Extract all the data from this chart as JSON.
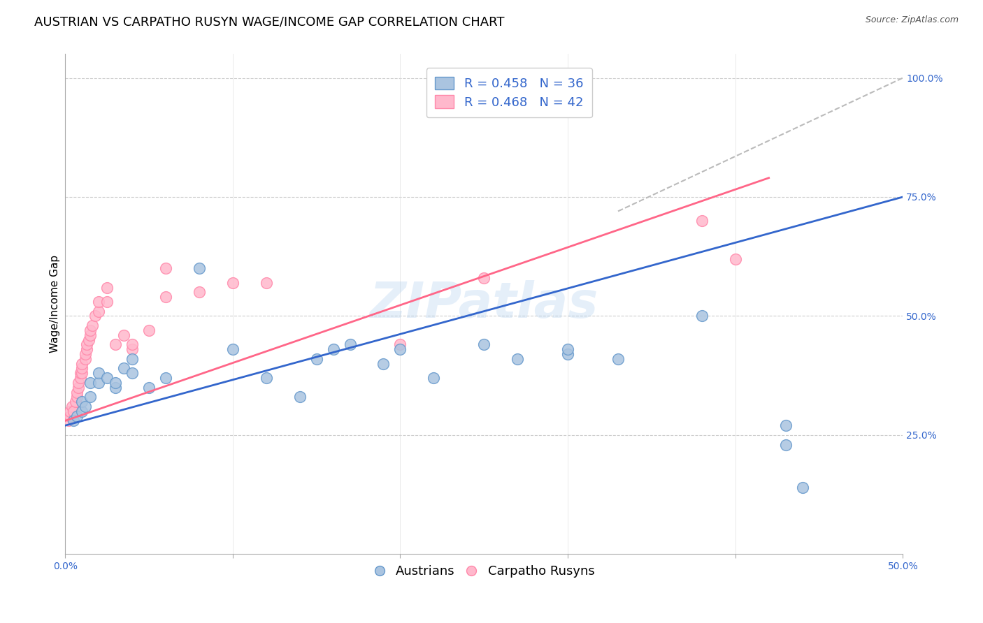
{
  "title": "AUSTRIAN VS CARPATHO RUSYN WAGE/INCOME GAP CORRELATION CHART",
  "source": "Source: ZipAtlas.com",
  "ylabel": "Wage/Income Gap",
  "watermark": "ZIPatlas",
  "xlim": [
    0.0,
    0.5
  ],
  "ylim": [
    0.0,
    1.05
  ],
  "xticks": [
    0.0,
    0.1,
    0.2,
    0.3,
    0.4,
    0.5
  ],
  "xticklabels": [
    "0.0%",
    "",
    "",
    "",
    "",
    "50.0%"
  ],
  "yticks_right": [
    0.25,
    0.5,
    0.75,
    1.0
  ],
  "yticklabels_right": [
    "25.0%",
    "50.0%",
    "75.0%",
    "100.0%"
  ],
  "grid_yticks": [
    0.25,
    0.5,
    0.75,
    1.0
  ],
  "blue_R": 0.458,
  "blue_N": 36,
  "pink_R": 0.468,
  "pink_N": 42,
  "blue_color": "#6699CC",
  "pink_color": "#FF88AA",
  "blue_fill": "#aac4e0",
  "pink_fill": "#ffb8cc",
  "trend_blue": "#3366CC",
  "trend_pink": "#FF6688",
  "trend_gray": "#BBBBBB",
  "blue_scatter_x": [
    0.005,
    0.007,
    0.01,
    0.01,
    0.012,
    0.015,
    0.015,
    0.02,
    0.02,
    0.025,
    0.03,
    0.03,
    0.035,
    0.04,
    0.04,
    0.05,
    0.06,
    0.08,
    0.1,
    0.12,
    0.14,
    0.15,
    0.16,
    0.17,
    0.19,
    0.2,
    0.22,
    0.25,
    0.27,
    0.3,
    0.3,
    0.33,
    0.38,
    0.43,
    0.43,
    0.44
  ],
  "blue_scatter_y": [
    0.28,
    0.29,
    0.3,
    0.32,
    0.31,
    0.33,
    0.36,
    0.36,
    0.38,
    0.37,
    0.35,
    0.36,
    0.39,
    0.41,
    0.38,
    0.35,
    0.37,
    0.6,
    0.43,
    0.37,
    0.33,
    0.41,
    0.43,
    0.44,
    0.4,
    0.43,
    0.37,
    0.44,
    0.41,
    0.42,
    0.43,
    0.41,
    0.5,
    0.23,
    0.27,
    0.14
  ],
  "pink_scatter_x": [
    0.002,
    0.003,
    0.003,
    0.004,
    0.005,
    0.006,
    0.007,
    0.007,
    0.008,
    0.008,
    0.009,
    0.009,
    0.01,
    0.01,
    0.01,
    0.012,
    0.012,
    0.013,
    0.013,
    0.014,
    0.015,
    0.015,
    0.016,
    0.018,
    0.02,
    0.02,
    0.025,
    0.025,
    0.03,
    0.035,
    0.04,
    0.04,
    0.05,
    0.06,
    0.06,
    0.08,
    0.1,
    0.12,
    0.2,
    0.25,
    0.38,
    0.4
  ],
  "pink_scatter_y": [
    0.28,
    0.29,
    0.3,
    0.31,
    0.3,
    0.32,
    0.33,
    0.34,
    0.35,
    0.36,
    0.37,
    0.38,
    0.38,
    0.39,
    0.4,
    0.41,
    0.42,
    0.43,
    0.44,
    0.45,
    0.46,
    0.47,
    0.48,
    0.5,
    0.51,
    0.53,
    0.53,
    0.56,
    0.44,
    0.46,
    0.43,
    0.44,
    0.47,
    0.54,
    0.6,
    0.55,
    0.57,
    0.57,
    0.44,
    0.58,
    0.7,
    0.62
  ],
  "blue_line_x": [
    0.0,
    0.5
  ],
  "blue_line_y": [
    0.27,
    0.75
  ],
  "pink_line_x": [
    0.0,
    0.42
  ],
  "pink_line_y": [
    0.28,
    0.79
  ],
  "gray_line_x": [
    0.33,
    0.5
  ],
  "gray_line_y": [
    0.72,
    1.0
  ],
  "title_fontsize": 13,
  "label_fontsize": 11,
  "tick_fontsize": 10,
  "legend_fontsize": 13
}
